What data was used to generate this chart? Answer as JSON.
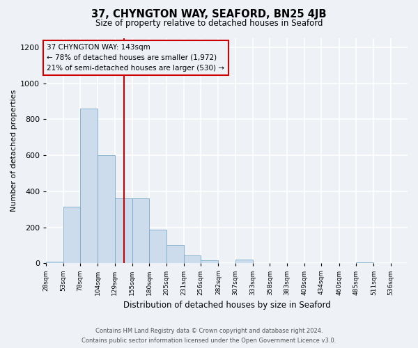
{
  "title": "37, CHYNGTON WAY, SEAFORD, BN25 4JB",
  "subtitle": "Size of property relative to detached houses in Seaford",
  "xlabel": "Distribution of detached houses by size in Seaford",
  "ylabel": "Number of detached properties",
  "bar_color": "#ccdcec",
  "bar_edge_color": "#7aaaca",
  "bin_labels": [
    "28sqm",
    "53sqm",
    "78sqm",
    "104sqm",
    "129sqm",
    "155sqm",
    "180sqm",
    "205sqm",
    "231sqm",
    "256sqm",
    "282sqm",
    "307sqm",
    "333sqm",
    "358sqm",
    "383sqm",
    "409sqm",
    "434sqm",
    "460sqm",
    "485sqm",
    "511sqm",
    "536sqm"
  ],
  "bin_edges": [
    28,
    53,
    78,
    104,
    129,
    155,
    180,
    205,
    231,
    256,
    282,
    307,
    333,
    358,
    383,
    409,
    434,
    460,
    485,
    511,
    536,
    561
  ],
  "bar_heights": [
    10,
    315,
    860,
    600,
    360,
    360,
    185,
    100,
    45,
    15,
    0,
    20,
    0,
    0,
    0,
    0,
    0,
    0,
    5,
    0,
    0
  ],
  "ylim": [
    0,
    1250
  ],
  "yticks": [
    0,
    200,
    400,
    600,
    800,
    1000,
    1200
  ],
  "vline_x": 143,
  "vline_color": "#cc0000",
  "annotation_line1": "37 CHYNGTON WAY: 143sqm",
  "annotation_line2": "← 78% of detached houses are smaller (1,972)",
  "annotation_line3": "21% of semi-detached houses are larger (530) →",
  "annotation_box_color": "#cc0000",
  "background_color": "#eef2f7",
  "grid_color": "#ffffff",
  "footer_line1": "Contains HM Land Registry data © Crown copyright and database right 2024.",
  "footer_line2": "Contains public sector information licensed under the Open Government Licence v3.0."
}
